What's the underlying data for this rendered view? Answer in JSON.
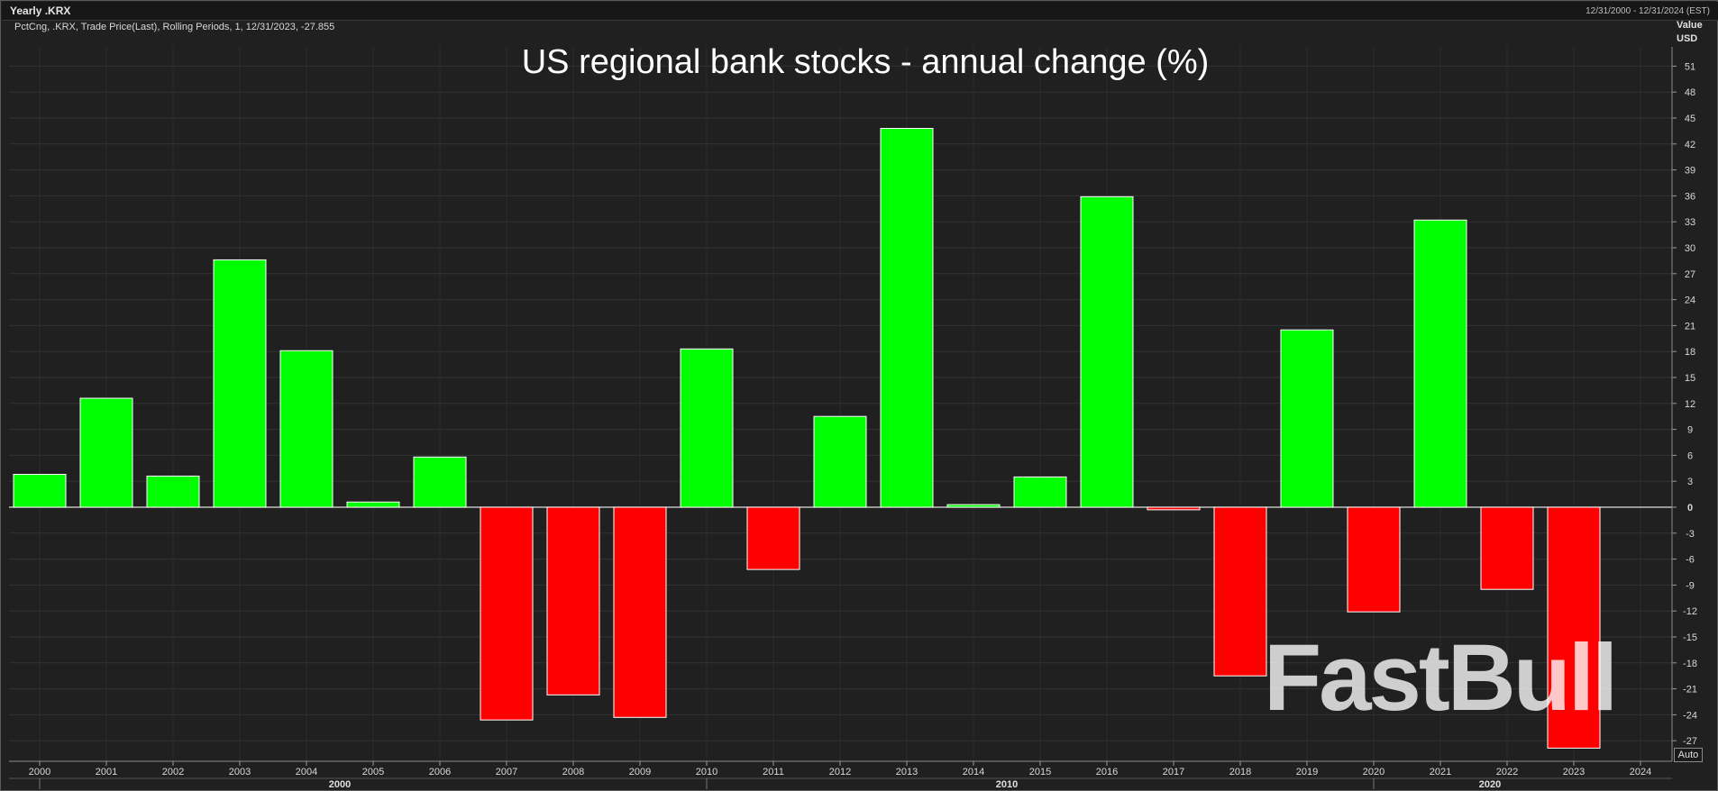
{
  "header": {
    "title": "Yearly .KRX",
    "date_range": "12/31/2000 - 12/31/2024 (EST)"
  },
  "subtitle": "PctCng, .KRX, Trade Price(Last), Rolling Periods, 1, 12/31/2023, -27.855",
  "y_unit": {
    "line1": "Value",
    "line2": "USD"
  },
  "auto_label": "Auto",
  "watermark": "FastBull",
  "colors": {
    "positive": "#00ff00",
    "negative": "#ff0000",
    "background": "#202020",
    "grid": "#333333"
  },
  "chart_data": {
    "type": "bar",
    "title": "US regional bank stocks - annual change (%)",
    "categories": [
      "2000",
      "2001",
      "2002",
      "2003",
      "2004",
      "2005",
      "2006",
      "2007",
      "2008",
      "2009",
      "2010",
      "2011",
      "2012",
      "2013",
      "2014",
      "2015",
      "2016",
      "2017",
      "2018",
      "2019",
      "2020",
      "2021",
      "2022",
      "2023",
      "2024"
    ],
    "values": [
      3.8,
      12.6,
      3.6,
      28.6,
      18.1,
      0.6,
      5.8,
      -24.6,
      -21.7,
      -24.3,
      18.3,
      -7.2,
      10.5,
      43.8,
      0.3,
      3.5,
      35.9,
      -0.3,
      -19.5,
      20.5,
      -12.1,
      33.2,
      -9.5,
      -27.855,
      null
    ],
    "decades": [
      "2000",
      "2010",
      "2020"
    ],
    "ylabel": "Value USD",
    "yticks": [
      51,
      48,
      45,
      42,
      39,
      36,
      33,
      30,
      27,
      24,
      21,
      18,
      15,
      12,
      9,
      6,
      3,
      0,
      -3,
      -6,
      -9,
      -12,
      -15,
      -18,
      -21,
      -24,
      -27
    ],
    "ylim": [
      -29,
      54
    ],
    "grid": true,
    "legend": "none"
  }
}
